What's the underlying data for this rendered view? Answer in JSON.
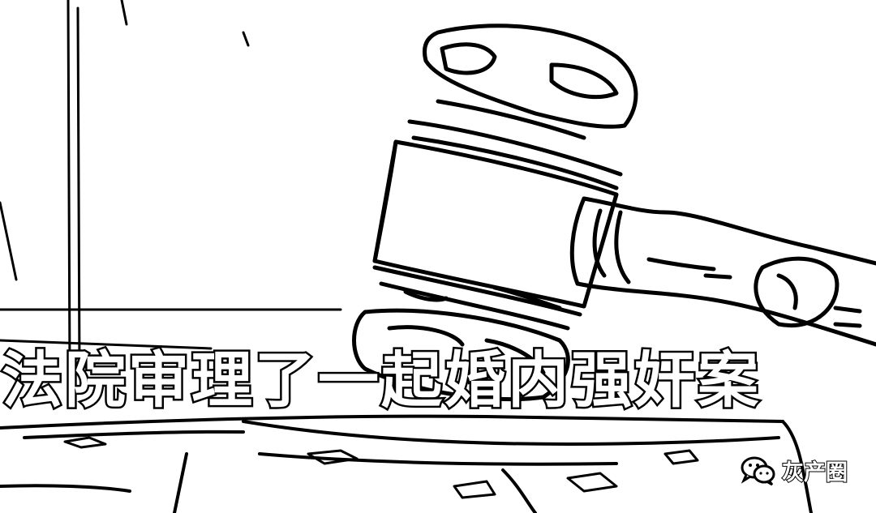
{
  "caption": "法院审理了一起婚内强奸案",
  "watermark": {
    "text": "灰产圈",
    "icon": "wechat-icon"
  },
  "colors": {
    "ink": "#000000",
    "paper": "#ffffff"
  }
}
